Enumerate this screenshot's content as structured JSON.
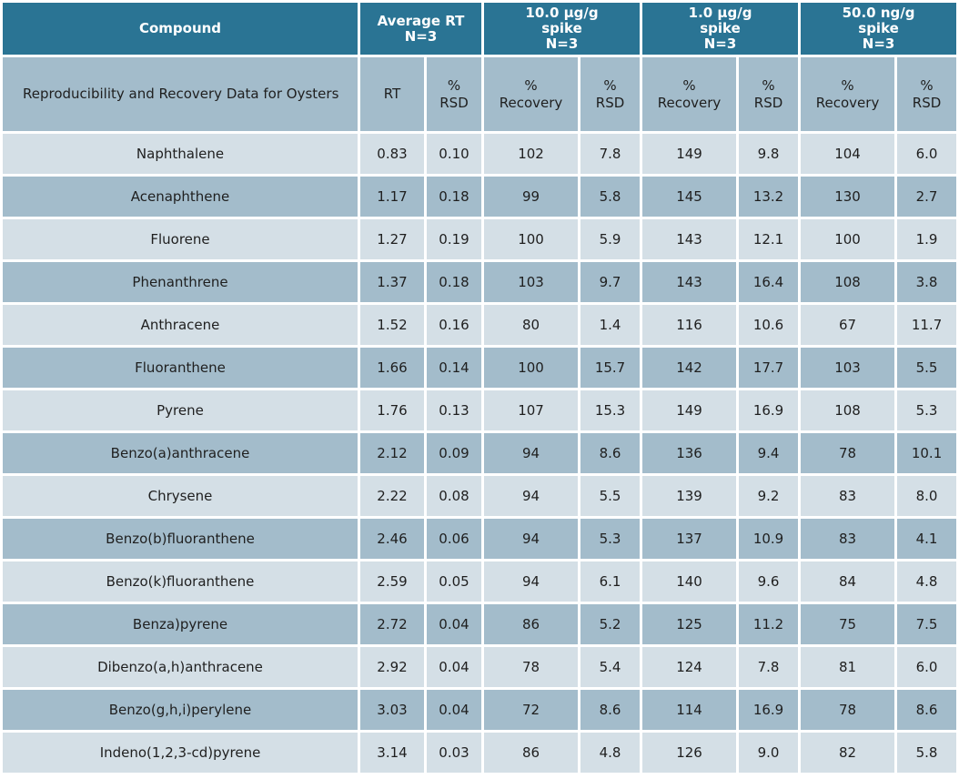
{
  "header": {
    "compound": "Compound",
    "average_rt": "Average RT\nN=3",
    "spike_10": "10.0 µg/g\nspike\nN=3",
    "spike_1": "1.0 µg/g\nspike\nN=3",
    "spike_50": "50.0 ng/g\nspike\nN=3"
  },
  "subheader": {
    "description": "Reproducibility and Recovery Data for Oysters",
    "rt": "RT",
    "rsd": "%\nRSD",
    "recovery": "%\nRecovery"
  },
  "rows": [
    [
      "Naphthalene",
      "0.83",
      "0.10",
      "102",
      "7.8",
      "149",
      "9.8",
      "104",
      "6.0"
    ],
    [
      "Acenaphthene",
      "1.17",
      "0.18",
      "99",
      "5.8",
      "145",
      "13.2",
      "130",
      "2.7"
    ],
    [
      "Fluorene",
      "1.27",
      "0.19",
      "100",
      "5.9",
      "143",
      "12.1",
      "100",
      "1.9"
    ],
    [
      "Phenanthrene",
      "1.37",
      "0.18",
      "103",
      "9.7",
      "143",
      "16.4",
      "108",
      "3.8"
    ],
    [
      "Anthracene",
      "1.52",
      "0.16",
      "80",
      "1.4",
      "116",
      "10.6",
      "67",
      "11.7"
    ],
    [
      "Fluoranthene",
      "1.66",
      "0.14",
      "100",
      "15.7",
      "142",
      "17.7",
      "103",
      "5.5"
    ],
    [
      "Pyrene",
      "1.76",
      "0.13",
      "107",
      "15.3",
      "149",
      "16.9",
      "108",
      "5.3"
    ],
    [
      "Benzo(a)anthracene",
      "2.12",
      "0.09",
      "94",
      "8.6",
      "136",
      "9.4",
      "78",
      "10.1"
    ],
    [
      "Chrysene",
      "2.22",
      "0.08",
      "94",
      "5.5",
      "139",
      "9.2",
      "83",
      "8.0"
    ],
    [
      "Benzo(b)fluoranthene",
      "2.46",
      "0.06",
      "94",
      "5.3",
      "137",
      "10.9",
      "83",
      "4.1"
    ],
    [
      "Benzo(k)fluoranthene",
      "2.59",
      "0.05",
      "94",
      "6.1",
      "140",
      "9.6",
      "84",
      "4.8"
    ],
    [
      "Benza)pyrene",
      "2.72",
      "0.04",
      "86",
      "5.2",
      "125",
      "11.2",
      "75",
      "7.5"
    ],
    [
      "Dibenzo(a,h)anthracene",
      "2.92",
      "0.04",
      "78",
      "5.4",
      "124",
      "7.8",
      "81",
      "6.0"
    ],
    [
      "Benzo(g,h,i)perylene",
      "3.03",
      "0.04",
      "72",
      "8.6",
      "114",
      "16.9",
      "78",
      "8.6"
    ],
    [
      "Indeno(1,2,3-cd)pyrene",
      "3.14",
      "0.03",
      "86",
      "4.8",
      "126",
      "9.0",
      "82",
      "5.8"
    ]
  ],
  "colors": {
    "header_bg": "#2a7494",
    "row_light": "#d4dfe6",
    "row_dark": "#a3bccb"
  }
}
